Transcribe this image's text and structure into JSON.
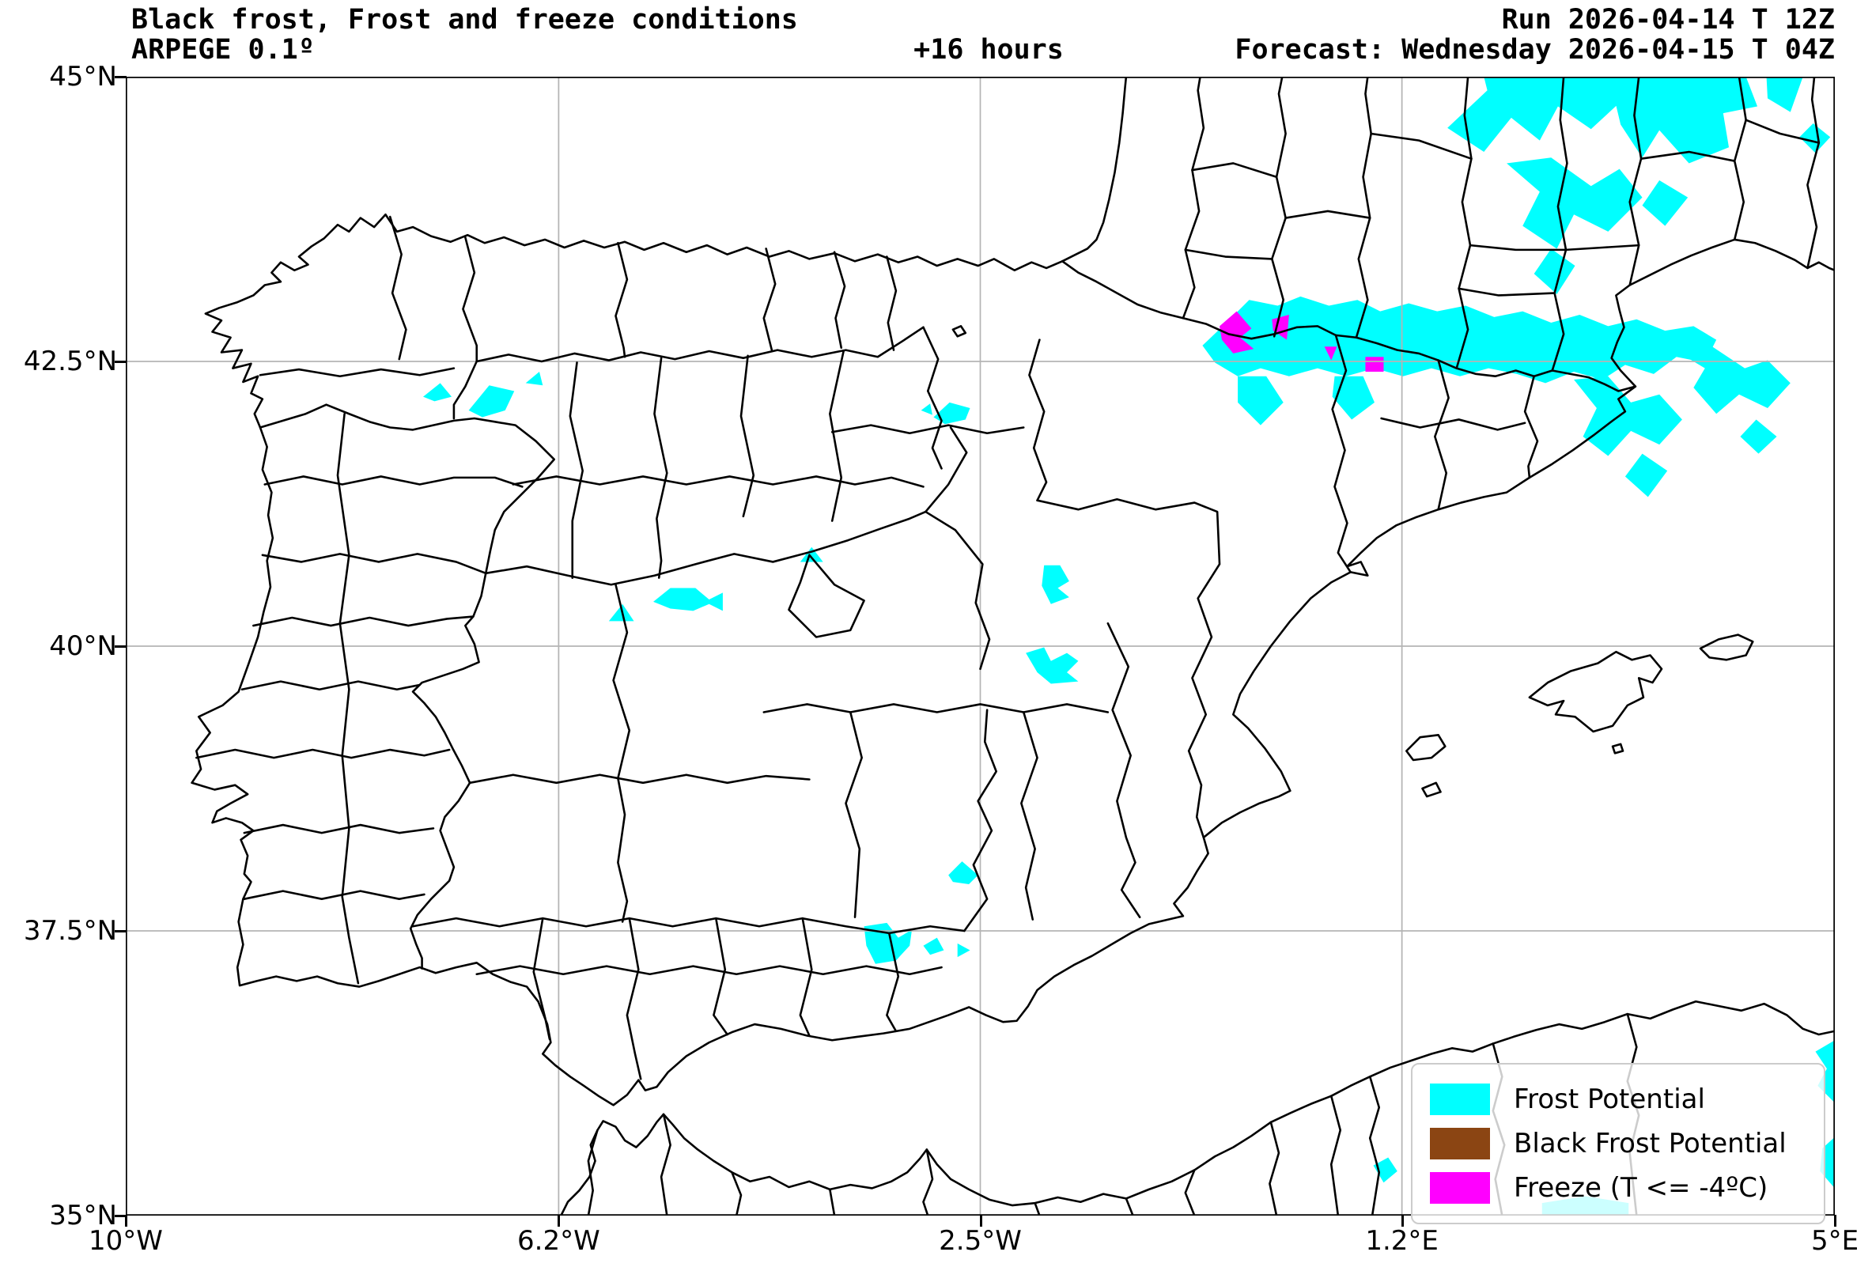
{
  "header": {
    "title": "Black frost, Frost and freeze conditions",
    "model": "ARPEGE 0.1º",
    "lead_time": "+16 hours",
    "run": "Run 2026-04-14 T 12Z",
    "forecast": "Forecast: Wednesday 2026-04-15 T 04Z"
  },
  "axes": {
    "x_ticks": [
      {
        "label": "10°W",
        "pos": 0.0
      },
      {
        "label": "6.2°W",
        "pos": 0.2533
      },
      {
        "label": "2.5°W",
        "pos": 0.5
      },
      {
        "label": "1.2°E",
        "pos": 0.7467
      },
      {
        "label": "5°E",
        "pos": 1.0
      }
    ],
    "y_ticks": [
      {
        "label": "45°N",
        "pos": 0.0
      },
      {
        "label": "42.5°N",
        "pos": 0.25
      },
      {
        "label": "40°N",
        "pos": 0.5
      },
      {
        "label": "37.5°N",
        "pos": 0.75
      },
      {
        "label": "35°N",
        "pos": 1.0
      }
    ],
    "x_range": [
      "10°W",
      "5°E"
    ],
    "y_range": [
      "35°N",
      "45°N"
    ],
    "grid_color": "#b4b4b4"
  },
  "legend": {
    "items": [
      {
        "label": "Frost Potential",
        "color": "#00FFFF"
      },
      {
        "label": "Black Frost Potential",
        "color": "#8B4513"
      },
      {
        "label": "Freeze (T <= -4ºC)",
        "color": "#FF00FF"
      }
    ]
  },
  "colors": {
    "frost": "#00FFFF",
    "black_frost": "#8B4513",
    "freeze": "#FF00FF",
    "boundary": "#000000",
    "grid": "#b4b4b4"
  },
  "chart_data": {
    "type": "map",
    "title": "Black frost, Frost and freeze conditions",
    "region": "Iberian Peninsula, southern France, Balearic Islands, north-west Africa",
    "projection_extent": {
      "lon": [
        -10,
        5
      ],
      "lat": [
        35,
        45
      ]
    },
    "coordinate_system": "polygon coords are plot-fraction units: x 0-1500 (10W..5E), y 0-1000 (45N..35N)",
    "frost_polygons": [
      [
        1160,
        45,
        1195,
        12,
        1192,
        0,
        1302,
        0,
        1312,
        22,
        1286,
        46,
        1257,
        26,
        1241,
        56,
        1216,
        36,
        1192,
        66
      ],
      [
        1302,
        0,
        1422,
        0,
        1432,
        26,
        1402,
        32,
        1407,
        62,
        1372,
        76,
        1346,
        47,
        1331,
        71,
        1312,
        42
      ],
      [
        1212,
        76,
        1251,
        71,
        1286,
        96,
        1311,
        81,
        1331,
        106,
        1301,
        136,
        1271,
        121,
        1256,
        151,
        1226,
        131,
        1241,
        101
      ],
      [
        1251,
        151,
        1272,
        166,
        1256,
        191,
        1236,
        173
      ],
      [
        1346,
        91,
        1371,
        106,
        1351,
        131,
        1331,
        113
      ],
      [
        1440,
        0,
        1472,
        0,
        1461,
        31,
        1441,
        19
      ],
      [
        1481,
        41,
        1496,
        53,
        1483,
        67,
        1469,
        53
      ],
      [
        945,
        236,
        966,
        216,
        986,
        196,
        1011,
        201,
        1031,
        193,
        1056,
        201,
        1081,
        196,
        1101,
        206,
        1126,
        199,
        1151,
        206,
        1176,
        201,
        1201,
        211,
        1226,
        206,
        1251,
        216,
        1276,
        209,
        1301,
        219,
        1326,
        213,
        1351,
        223,
        1376,
        219,
        1396,
        231,
        1386,
        251,
        1361,
        246,
        1341,
        261,
        1316,
        253,
        1296,
        266,
        1271,
        259,
        1246,
        269,
        1221,
        261,
        1196,
        256,
        1171,
        263,
        1146,
        256,
        1121,
        263,
        1096,
        256,
        1071,
        263,
        1046,
        256,
        1021,
        263,
        996,
        256,
        976,
        263,
        956,
        251
      ],
      [
        976,
        263,
        1001,
        263,
        1016,
        286,
        996,
        306,
        976,
        286
      ],
      [
        1061,
        263,
        1086,
        263,
        1096,
        286,
        1076,
        301,
        1059,
        281
      ],
      [
        1271,
        266,
        1301,
        263,
        1321,
        286,
        1346,
        279,
        1366,
        301,
        1346,
        323,
        1321,
        311,
        1301,
        333,
        1279,
        316,
        1291,
        291
      ],
      [
        1331,
        331,
        1353,
        346,
        1336,
        369,
        1316,
        351
      ],
      [
        1361,
        241,
        1391,
        236,
        1421,
        256,
        1441,
        249,
        1461,
        269,
        1441,
        291,
        1416,
        279,
        1396,
        296,
        1376,
        273,
        1386,
        256
      ],
      [
        1431,
        301,
        1449,
        316,
        1433,
        331,
        1417,
        316
      ],
      [
        261,
        281,
        276,
        269,
        286,
        281,
        271,
        285
      ],
      [
        301,
        293,
        319,
        271,
        341,
        276,
        333,
        293,
        313,
        299
      ],
      [
        351,
        269,
        363,
        259,
        366,
        271
      ],
      [
        709,
        299,
        723,
        286,
        741,
        291,
        737,
        301,
        719,
        305
      ],
      [
        698,
        293,
        706,
        287,
        708,
        297
      ],
      [
        592,
        426,
        602,
        413,
        612,
        426
      ],
      [
        463,
        461,
        478,
        449,
        500,
        449,
        512,
        459,
        524,
        453,
        524,
        469,
        512,
        463,
        498,
        469,
        478,
        467
      ],
      [
        424,
        478,
        436,
        463,
        446,
        478
      ],
      [
        806,
        429,
        820,
        429,
        828,
        443,
        818,
        449,
        828,
        457,
        812,
        463,
        804,
        447
      ],
      [
        790,
        506,
        806,
        501,
        812,
        513,
        826,
        506,
        836,
        513,
        826,
        523,
        836,
        531,
        812,
        533,
        800,
        523
      ],
      [
        722,
        701,
        734,
        689,
        748,
        701,
        740,
        709,
        726,
        707
      ],
      [
        648,
        746,
        668,
        743,
        678,
        756,
        690,
        749,
        688,
        763,
        676,
        776,
        658,
        779,
        650,
        763
      ],
      [
        700,
        763,
        712,
        756,
        718,
        767,
        706,
        771
      ],
      [
        730,
        761,
        741,
        767,
        730,
        773
      ],
      [
        1095,
        956,
        1108,
        949,
        1116,
        961,
        1104,
        971
      ],
      [
        1243,
        989,
        1281,
        983,
        1319,
        989,
        1319,
        1000,
        1243,
        1000
      ],
      [
        1483,
        856,
        1500,
        846,
        1500,
        901,
        1485,
        886,
        1493,
        871
      ],
      [
        1489,
        941,
        1500,
        931,
        1500,
        976,
        1487,
        961
      ]
    ],
    "freeze_polygons": [
      [
        960,
        219,
        975,
        206,
        988,
        221,
        978,
        229,
        990,
        239,
        972,
        243,
        962,
        231
      ],
      [
        1006,
        213,
        1021,
        209,
        1019,
        231,
        1007,
        223
      ],
      [
        1052,
        237,
        1063,
        237,
        1058,
        249
      ],
      [
        1088,
        246,
        1104,
        246,
        1104,
        259,
        1088,
        259
      ]
    ],
    "black_frost_polygons": []
  }
}
